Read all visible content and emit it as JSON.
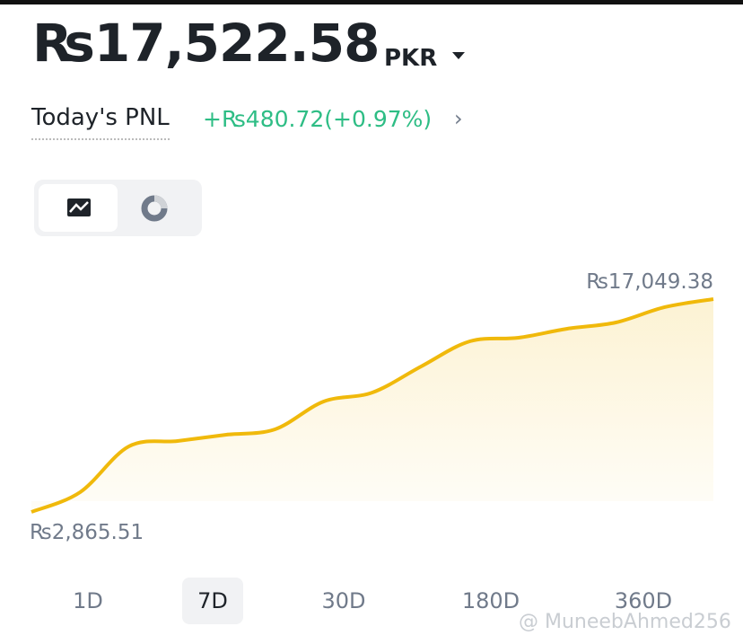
{
  "header": {
    "balance": "₨17,522.58",
    "currency": "PKR"
  },
  "pnl": {
    "label": "Today's PNL",
    "value": "+₨480.72(+0.97%)"
  },
  "chart_data": {
    "type": "line",
    "values": [
      2865.51,
      4182,
      7235,
      7594,
      8013,
      8372,
      10227,
      10826,
      12561,
      14237,
      14477,
      15076,
      15494,
      16512,
      17049.38
    ],
    "value_labels": [
      "₨2,865.51",
      null,
      null,
      null,
      null,
      null,
      null,
      null,
      null,
      null,
      null,
      null,
      null,
      null,
      "₨17,049.38"
    ],
    "color": "#f0b90b"
  },
  "tabs": [
    "1D",
    "7D",
    "30D",
    "180D",
    "360D"
  ],
  "selected_tab": 1,
  "watermark": "@ MuneebAhmed256"
}
